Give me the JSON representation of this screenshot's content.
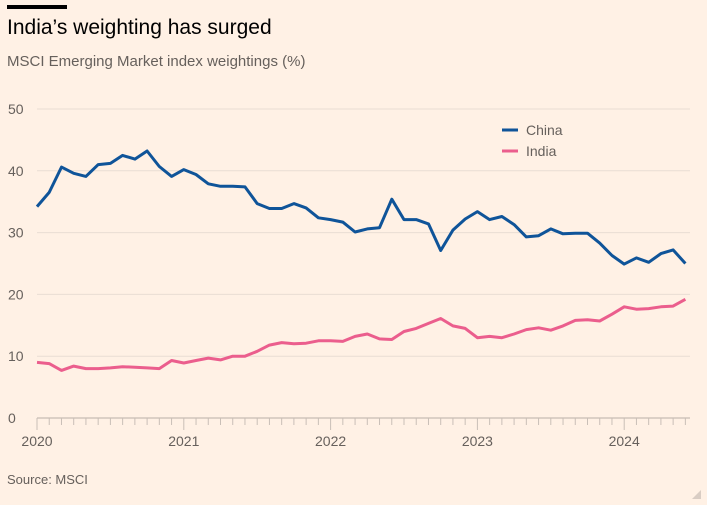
{
  "title": "India’s weighting has surged",
  "subtitle": "MSCI Emerging Market index weightings (%)",
  "source": "Source: MSCI",
  "colors": {
    "China": "#0f5499",
    "India": "#eb5e8d",
    "background": "#fff1e5"
  },
  "chart_data": {
    "type": "line",
    "title": "India’s weighting has surged",
    "subtitle": "MSCI Emerging Market index weightings (%)",
    "xlabel": "",
    "ylabel": "%",
    "ylim": [
      0,
      50
    ],
    "yticks": [
      0,
      10,
      20,
      30,
      40,
      50
    ],
    "xticks": [
      "2020",
      "2021",
      "2022",
      "2023",
      "2024"
    ],
    "x_start": "2020-01",
    "x_frequency": "monthly",
    "x_end": "2024-06",
    "grid": true,
    "legend_position": "top-right",
    "series": [
      {
        "name": "China",
        "values": [
          34.2,
          36.5,
          40.6,
          39.6,
          39.1,
          41.0,
          41.2,
          42.5,
          41.9,
          43.2,
          40.7,
          39.1,
          40.2,
          39.4,
          37.9,
          37.5,
          37.5,
          37.4,
          34.7,
          33.9,
          33.9,
          34.7,
          34.0,
          32.4,
          32.1,
          31.7,
          30.1,
          30.6,
          30.8,
          35.4,
          32.1,
          32.1,
          31.4,
          27.1,
          30.4,
          32.2,
          33.4,
          32.1,
          32.6,
          31.3,
          29.3,
          29.5,
          30.6,
          29.8,
          29.9,
          29.9,
          28.3,
          26.3,
          24.9,
          25.9,
          25.2,
          26.6,
          27.2,
          25.0
        ]
      },
      {
        "name": "India",
        "values": [
          9.0,
          8.8,
          7.7,
          8.4,
          8.0,
          8.0,
          8.1,
          8.3,
          8.2,
          8.1,
          8.0,
          9.3,
          8.9,
          9.3,
          9.7,
          9.4,
          10.0,
          10.0,
          10.8,
          11.8,
          12.2,
          12.0,
          12.1,
          12.5,
          12.5,
          12.4,
          13.2,
          13.6,
          12.8,
          12.7,
          14.0,
          14.5,
          15.3,
          16.1,
          14.9,
          14.5,
          13.0,
          13.2,
          13.0,
          13.6,
          14.3,
          14.6,
          14.2,
          14.9,
          15.8,
          15.9,
          15.7,
          16.8,
          18.0,
          17.6,
          17.7,
          18.0,
          18.1,
          19.2
        ]
      }
    ]
  }
}
